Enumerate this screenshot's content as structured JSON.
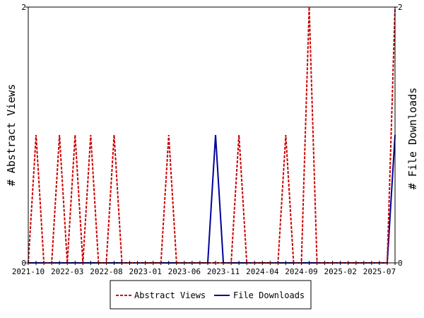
{
  "chart_data": {
    "type": "line",
    "x": [
      "2021-10",
      "2021-11",
      "2021-12",
      "2022-01",
      "2022-02",
      "2022-03",
      "2022-04",
      "2022-05",
      "2022-06",
      "2022-07",
      "2022-08",
      "2022-09",
      "2022-10",
      "2022-11",
      "2022-12",
      "2023-01",
      "2023-02",
      "2023-03",
      "2023-04",
      "2023-05",
      "2023-06",
      "2023-07",
      "2023-08",
      "2023-09",
      "2023-10",
      "2023-11",
      "2023-12",
      "2024-01",
      "2024-02",
      "2024-03",
      "2024-04",
      "2024-05",
      "2024-06",
      "2024-07",
      "2024-08",
      "2024-09",
      "2024-10",
      "2024-11",
      "2024-12",
      "2025-01",
      "2025-02",
      "2025-03",
      "2025-04",
      "2025-05",
      "2025-06",
      "2025-07",
      "2025-08",
      "2025-09"
    ],
    "xticks": [
      "2021-10",
      "2022-03",
      "2022-08",
      "2023-01",
      "2023-06",
      "2023-11",
      "2024-04",
      "2024-09",
      "2025-02",
      "2025-07"
    ],
    "series": [
      {
        "name": "Abstract Views",
        "axis": "left",
        "color": "#cc0000",
        "dash": true,
        "values": [
          0,
          1,
          0,
          0,
          1,
          0,
          1,
          0,
          1,
          0,
          0,
          1,
          0,
          0,
          0,
          0,
          0,
          0,
          1,
          0,
          0,
          0,
          0,
          0,
          0,
          0,
          0,
          1,
          0,
          0,
          0,
          0,
          0,
          1,
          0,
          0,
          2,
          0,
          0,
          0,
          0,
          0,
          0,
          0,
          0,
          0,
          0,
          2
        ]
      },
      {
        "name": "File Downloads",
        "axis": "right",
        "color": "#000099",
        "dash": false,
        "values": [
          0,
          0,
          0,
          0,
          0,
          0,
          0,
          0,
          0,
          0,
          0,
          0,
          0,
          0,
          0,
          0,
          0,
          0,
          0,
          0,
          0,
          0,
          0,
          0,
          1,
          0,
          0,
          0,
          0,
          0,
          0,
          0,
          0,
          0,
          0,
          0,
          0,
          0,
          0,
          0,
          0,
          0,
          0,
          0,
          0,
          0,
          0,
          1
        ]
      }
    ],
    "ylabel_left": "# Abstract Views",
    "ylabel_right": "# File Downloads",
    "ylim_left": [
      0,
      2
    ],
    "ylim_right": [
      0,
      2
    ],
    "yticks_left": [
      "0",
      "2"
    ],
    "yticks_right": [
      "0",
      "2"
    ],
    "legend_position": "bottom-center",
    "grid": false
  }
}
